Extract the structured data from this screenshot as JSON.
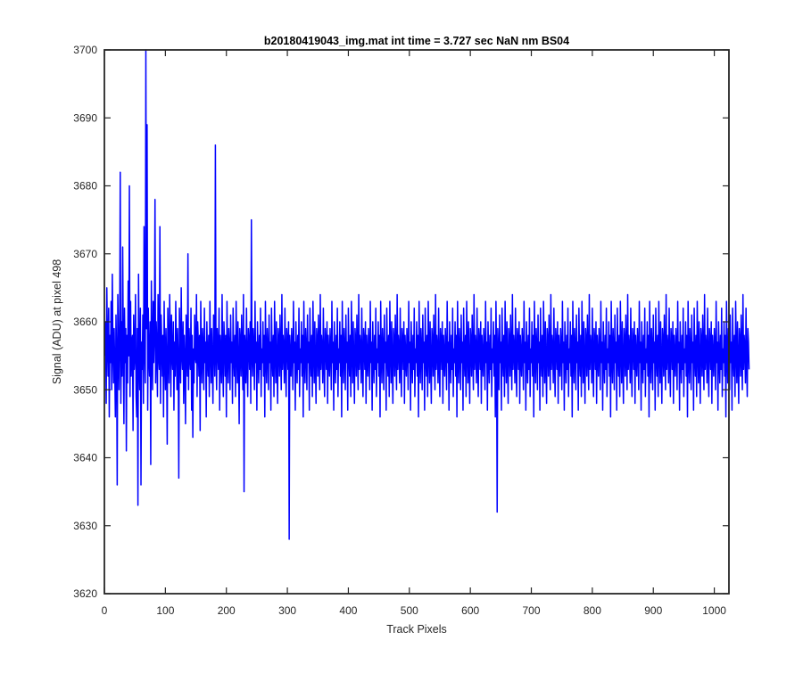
{
  "chart_data": {
    "type": "line",
    "title": "b20180419043_img.mat int time = 3.727 sec  NaN nm BS04",
    "xlabel": "Track Pixels",
    "ylabel": "Signal (ADU) at pixel 498",
    "xlim": [
      0,
      1024
    ],
    "ylim": [
      3620,
      3700
    ],
    "xticks": [
      0,
      100,
      200,
      300,
      400,
      500,
      600,
      700,
      800,
      900,
      1000
    ],
    "xtick_labels": [
      "0",
      "100",
      "200",
      "300",
      "400",
      "500",
      "600",
      "700",
      "800",
      "900",
      "1000"
    ],
    "yticks": [
      3620,
      3630,
      3640,
      3650,
      3660,
      3670,
      3680,
      3690,
      3700
    ],
    "ytick_labels": [
      "3620",
      "3630",
      "3640",
      "3650",
      "3660",
      "3670",
      "3680",
      "3690",
      "3700"
    ],
    "grid": false,
    "box": true,
    "line_color": "#0000ff",
    "series": [
      {
        "x_start": 1,
        "x_step": 1,
        "y_mean": 3655,
        "y_std": 6,
        "y_min_observed": 3628,
        "y_max_observed": 3700,
        "values": [
          3655,
          3660,
          3648,
          3665,
          3657,
          3652,
          3662,
          3646,
          3658,
          3654,
          3663,
          3650,
          3667,
          3656,
          3651,
          3659,
          3653,
          3646,
          3661,
          3655,
          3636,
          3664,
          3658,
          3650,
          3657,
          3682,
          3648,
          3660,
          3652,
          3671,
          3656,
          3645,
          3662,
          3654,
          3659,
          3641,
          3658,
          3651,
          3666,
          3655,
          3680,
          3649,
          3663,
          3652,
          3657,
          3658,
          3644,
          3661,
          3653,
          3655,
          3664,
          3649,
          3646,
          3659,
          3633,
          3667,
          3655,
          3650,
          3662,
          3636,
          3657,
          3653,
          3661,
          3648,
          3674,
          3656,
          3651,
          3700,
          3659,
          3689,
          3647,
          3662,
          3655,
          3652,
          3660,
          3639,
          3666,
          3657,
          3650,
          3663,
          3654,
          3658,
          3678,
          3651,
          3660,
          3656,
          3649,
          3664,
          3655,
          3653,
          3674,
          3648,
          3661,
          3657,
          3652,
          3658,
          3646,
          3663,
          3655,
          3650,
          3659,
          3654,
          3642,
          3662,
          3656,
          3651,
          3664,
          3658,
          3649,
          3661,
          3655,
          3653,
          3660,
          3647,
          3657,
          3652,
          3663,
          3656,
          3650,
          3659,
          3654,
          3637,
          3662,
          3657,
          3651,
          3665,
          3655,
          3653,
          3660,
          3648,
          3658,
          3654,
          3645,
          3661,
          3656,
          3652,
          3670,
          3650,
          3659,
          3655,
          3653,
          3662,
          3647,
          3658,
          3643,
          3656,
          3651,
          3661,
          3655,
          3654,
          3664,
          3649,
          3660,
          3657,
          3652,
          3658,
          3644,
          3663,
          3655,
          3651,
          3659,
          3656,
          3650,
          3662,
          3654,
          3657,
          3646,
          3660,
          3655,
          3652,
          3658,
          3649,
          3663,
          3656,
          3651,
          3659,
          3654,
          3648,
          3661,
          3657,
          3652,
          3686,
          3655,
          3650,
          3659,
          3656,
          3653,
          3662,
          3647,
          3658,
          3655,
          3651,
          3664,
          3654,
          3649,
          3660,
          3657,
          3652,
          3658,
          3646,
          3663,
          3655,
          3651,
          3659,
          3656,
          3650,
          3661,
          3654,
          3657,
          3648,
          3662,
          3655,
          3652,
          3658,
          3649,
          3663,
          3656,
          3651,
          3660,
          3654,
          3645,
          3659,
          3657,
          3652,
          3661,
          3655,
          3650,
          3664,
          3635,
          3658,
          3656,
          3651,
          3662,
          3654,
          3649,
          3659,
          3657,
          3653,
          3660,
          3648,
          3675,
          3655,
          3652,
          3659,
          3656,
          3650,
          3663,
          3654,
          3657,
          3647,
          3660,
          3655,
          3651,
          3658,
          3653,
          3662,
          3649,
          3656,
          3654,
          3660,
          3652,
          3658,
          3646,
          3663,
          3655,
          3651,
          3659,
          3656,
          3650,
          3661,
          3654,
          3657,
          3647,
          3662,
          3655,
          3652,
          3658,
          3649,
          3663,
          3656,
          3651,
          3660,
          3654,
          3648,
          3659,
          3657,
          3652,
          3661,
          3655,
          3650,
          3664,
          3653,
          3658,
          3656,
          3651,
          3662,
          3654,
          3649,
          3659,
          3657,
          3653,
          3660,
          3628,
          3658,
          3655,
          3652,
          3659,
          3656,
          3650,
          3663,
          3654,
          3657,
          3647,
          3660,
          3655,
          3651,
          3658,
          3653,
          3662,
          3649,
          3656,
          3654,
          3660,
          3652,
          3658,
          3646,
          3663,
          3655,
          3651,
          3659,
          3656,
          3650,
          3661,
          3654,
          3657,
          3647,
          3662,
          3655,
          3652,
          3658,
          3649,
          3663,
          3656,
          3651,
          3660,
          3654,
          3648,
          3659,
          3657,
          3652,
          3661,
          3655,
          3650,
          3664,
          3653,
          3658,
          3656,
          3651,
          3662,
          3654,
          3649,
          3659,
          3657,
          3653,
          3660,
          3648,
          3658,
          3655,
          3652,
          3659,
          3656,
          3650,
          3663,
          3654,
          3657,
          3647,
          3660,
          3655,
          3651,
          3658,
          3653,
          3662,
          3649,
          3656,
          3654,
          3660,
          3652,
          3658,
          3646,
          3663,
          3655,
          3651,
          3659,
          3656,
          3650,
          3661,
          3654,
          3657,
          3647,
          3662,
          3655,
          3652,
          3658,
          3649,
          3663,
          3656,
          3651,
          3660,
          3654,
          3648,
          3659,
          3657,
          3652,
          3661,
          3655,
          3650,
          3664,
          3653,
          3658,
          3656,
          3651,
          3662,
          3654,
          3649,
          3659,
          3657,
          3653,
          3660,
          3648,
          3658,
          3655,
          3652,
          3659,
          3656,
          3650,
          3663,
          3654,
          3657,
          3647,
          3660,
          3655,
          3651,
          3658,
          3653,
          3662,
          3649,
          3656,
          3654,
          3660,
          3652,
          3658,
          3646,
          3663,
          3655,
          3651,
          3659,
          3656,
          3650,
          3661,
          3654,
          3657,
          3647,
          3662,
          3655,
          3652,
          3658,
          3649,
          3663,
          3656,
          3651,
          3660,
          3654,
          3648,
          3659,
          3657,
          3652,
          3661,
          3655,
          3650,
          3664,
          3653,
          3658,
          3656,
          3651,
          3662,
          3654,
          3649,
          3659,
          3657,
          3653,
          3660,
          3648,
          3658,
          3655,
          3652,
          3659,
          3656,
          3650,
          3663,
          3654,
          3657,
          3647,
          3660,
          3655,
          3651,
          3658,
          3653,
          3662,
          3649,
          3656,
          3654,
          3660,
          3652,
          3658,
          3646,
          3663,
          3655,
          3651,
          3659,
          3656,
          3650,
          3661,
          3654,
          3657,
          3647,
          3662,
          3655,
          3652,
          3658,
          3649,
          3663,
          3656,
          3651,
          3660,
          3654,
          3648,
          3659,
          3657,
          3652,
          3661,
          3655,
          3650,
          3664,
          3653,
          3658,
          3656,
          3651,
          3662,
          3654,
          3649,
          3659,
          3657,
          3653,
          3660,
          3648,
          3658,
          3655,
          3652,
          3659,
          3656,
          3650,
          3663,
          3654,
          3657,
          3647,
          3660,
          3655,
          3651,
          3658,
          3653,
          3662,
          3649,
          3656,
          3654,
          3660,
          3652,
          3658,
          3646,
          3663,
          3655,
          3651,
          3659,
          3656,
          3650,
          3661,
          3654,
          3657,
          3647,
          3662,
          3655,
          3652,
          3658,
          3649,
          3663,
          3656,
          3651,
          3660,
          3654,
          3648,
          3659,
          3657,
          3652,
          3661,
          3655,
          3650,
          3664,
          3653,
          3658,
          3656,
          3651,
          3662,
          3654,
          3649,
          3659,
          3657,
          3653,
          3660,
          3648,
          3658,
          3655,
          3652,
          3659,
          3656,
          3650,
          3663,
          3654,
          3657,
          3647,
          3660,
          3655,
          3651,
          3658,
          3653,
          3662,
          3649,
          3656,
          3654,
          3660,
          3652,
          3658,
          3646,
          3663,
          3655,
          3632,
          3659,
          3656,
          3650,
          3661,
          3654,
          3657,
          3647,
          3662,
          3655,
          3652,
          3658,
          3649,
          3663,
          3656,
          3651,
          3660,
          3654,
          3648,
          3659,
          3657,
          3652,
          3661,
          3655,
          3650,
          3664,
          3653,
          3658,
          3656,
          3651,
          3662,
          3654,
          3649,
          3659,
          3657,
          3653,
          3660,
          3648,
          3658,
          3655,
          3652,
          3659,
          3656,
          3650,
          3663,
          3654,
          3657,
          3647,
          3660,
          3655,
          3651,
          3658,
          3653,
          3662,
          3649,
          3656,
          3654,
          3660,
          3652,
          3658,
          3646,
          3663,
          3655,
          3651,
          3659,
          3656,
          3650,
          3661,
          3654,
          3657,
          3647,
          3662,
          3655,
          3652,
          3658,
          3649,
          3663,
          3656,
          3651,
          3660,
          3654,
          3648,
          3659,
          3657,
          3652,
          3661,
          3655,
          3650,
          3664,
          3653,
          3658,
          3656,
          3651,
          3662,
          3654,
          3649,
          3659,
          3657,
          3653,
          3660,
          3648,
          3658,
          3655,
          3652,
          3659,
          3656,
          3650,
          3663,
          3654,
          3657,
          3647,
          3660,
          3655,
          3651,
          3658,
          3653,
          3662,
          3649,
          3656,
          3654,
          3660,
          3652,
          3658,
          3646,
          3663,
          3655,
          3651,
          3659,
          3656,
          3650,
          3661,
          3654,
          3657,
          3647,
          3662,
          3655,
          3652,
          3658,
          3649,
          3663,
          3656,
          3651,
          3660,
          3654,
          3648,
          3659,
          3657,
          3652,
          3661,
          3655,
          3650,
          3664,
          3653,
          3658,
          3656,
          3651,
          3662,
          3654,
          3649,
          3659,
          3657,
          3653,
          3660,
          3648,
          3658,
          3655,
          3652,
          3659,
          3656,
          3650,
          3663,
          3654,
          3657,
          3647,
          3660,
          3655,
          3651,
          3658,
          3653,
          3662,
          3649,
          3656,
          3654,
          3660,
          3652,
          3658,
          3646,
          3663,
          3655,
          3651,
          3659,
          3656,
          3650,
          3661,
          3654,
          3657,
          3647,
          3662,
          3655,
          3652,
          3658,
          3649,
          3663,
          3656,
          3651,
          3660,
          3654,
          3648,
          3659,
          3657,
          3652,
          3661,
          3655,
          3650,
          3664,
          3653,
          3658,
          3656,
          3651,
          3662,
          3654,
          3649,
          3659,
          3657,
          3653,
          3660,
          3648,
          3658,
          3655,
          3652,
          3659,
          3656,
          3650,
          3663,
          3654,
          3657,
          3647,
          3660,
          3655,
          3651,
          3658,
          3653,
          3662,
          3649,
          3656,
          3654,
          3660,
          3652,
          3658,
          3646,
          3663,
          3655,
          3651,
          3659,
          3656,
          3650,
          3661,
          3654,
          3657,
          3647,
          3662,
          3655,
          3652,
          3658,
          3649,
          3663,
          3656,
          3651,
          3660,
          3654,
          3648,
          3659,
          3657,
          3652,
          3661,
          3655,
          3650,
          3664,
          3653,
          3658,
          3656,
          3651,
          3662,
          3654,
          3649,
          3659,
          3657,
          3653,
          3660,
          3648,
          3658,
          3655,
          3652,
          3659,
          3656,
          3650,
          3663,
          3654,
          3657,
          3647,
          3660,
          3655,
          3651,
          3658,
          3653,
          3662,
          3649,
          3656,
          3654,
          3660,
          3652,
          3658,
          3646,
          3663,
          3655,
          3651,
          3659,
          3656,
          3650,
          3661,
          3654,
          3657,
          3647,
          3662,
          3655,
          3652,
          3658,
          3649,
          3663,
          3656,
          3651,
          3660,
          3654,
          3648,
          3659,
          3657,
          3652,
          3661,
          3655,
          3650,
          3664,
          3653,
          3658,
          3656,
          3651,
          3662,
          3654,
          3649,
          3659,
          3657,
          3653,
          3660,
          3648,
          3658,
          3655,
          3652,
          3659,
          3656,
          3650,
          3663,
          3654,
          3657,
          3647,
          3660,
          3655,
          3651,
          3658,
          3653,
          3662,
          3649,
          3656,
          3654,
          3660,
          3652,
          3658,
          3646,
          3663,
          3655,
          3651,
          3659,
          3656,
          3650,
          3661,
          3654,
          3657,
          3647,
          3662,
          3655,
          3652,
          3658,
          3649,
          3663,
          3656,
          3651,
          3660,
          3654,
          3648,
          3659,
          3657,
          3652,
          3661,
          3655,
          3650,
          3664,
          3653,
          3658,
          3656,
          3651,
          3662,
          3654,
          3649,
          3659,
          3657,
          3653
        ]
      }
    ]
  }
}
